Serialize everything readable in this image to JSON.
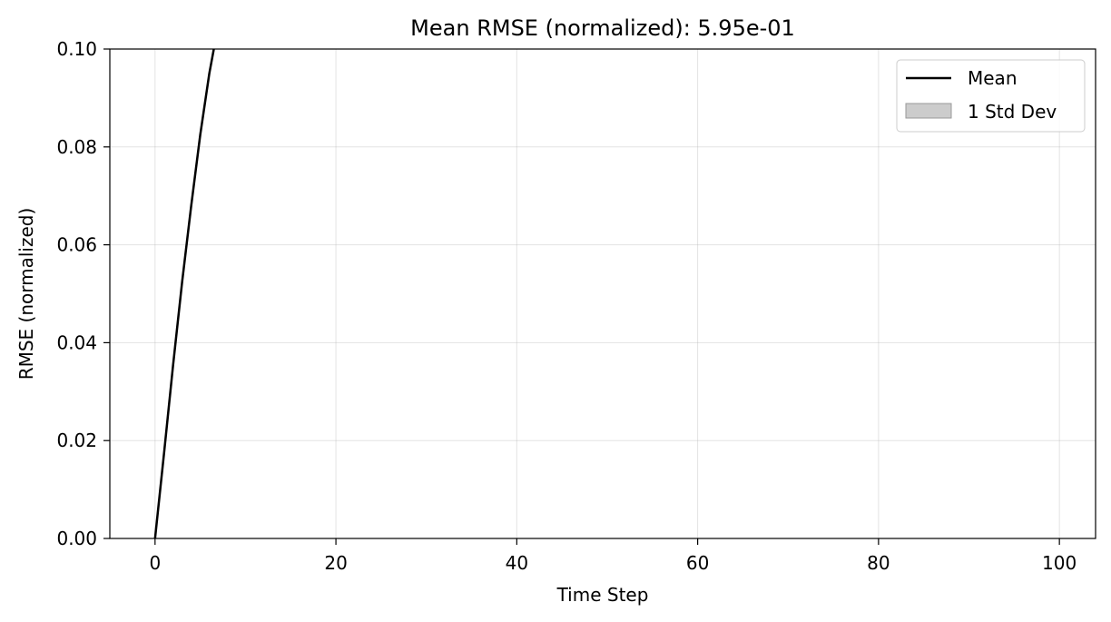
{
  "chart_data": {
    "type": "line",
    "title": "Mean RMSE (normalized): 5.95e-01",
    "xlabel": "Time Step",
    "ylabel": "RMSE (normalized)",
    "xlim": [
      -5,
      104
    ],
    "ylim": [
      0,
      0.1
    ],
    "grid": true,
    "legend_position": "top-right",
    "x_ticks": [
      0,
      20,
      40,
      60,
      80,
      100
    ],
    "x_tick_labels": [
      "0",
      "20",
      "40",
      "60",
      "80",
      "100"
    ],
    "y_ticks": [
      0,
      0.02,
      0.04,
      0.06,
      0.08,
      0.1
    ],
    "y_tick_labels": [
      "0.00",
      "0.02",
      "0.04",
      "0.06",
      "0.08",
      "0.10"
    ],
    "series": [
      {
        "name": "Mean",
        "kind": "line",
        "color": "#000000",
        "x": [
          0,
          1,
          2,
          3,
          4,
          5,
          6,
          6.5
        ],
        "y": [
          0,
          0.0175,
          0.0355,
          0.0525,
          0.068,
          0.0825,
          0.095,
          0.1
        ]
      }
    ],
    "legend": [
      {
        "name": "Mean",
        "kind": "line",
        "color": "#000000"
      },
      {
        "name": "1 Std Dev",
        "kind": "band",
        "color": "#cccccc"
      }
    ]
  }
}
